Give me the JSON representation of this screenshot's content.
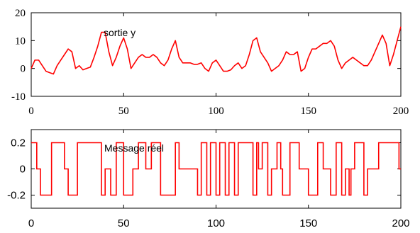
{
  "chart_data": [
    {
      "type": "line",
      "annotation": "sortie y",
      "xlim": [
        0,
        200
      ],
      "ylim": [
        -10,
        20
      ],
      "xticks": [
        0,
        50,
        100,
        150,
        200
      ],
      "yticks": [
        -10,
        0,
        10,
        20
      ],
      "xtick_labels": [
        "0",
        "50",
        "100",
        "150",
        "200"
      ],
      "ytick_labels": [
        "-10",
        "0",
        "10",
        "20"
      ],
      "grid": false,
      "line_color": "#ff0000",
      "series": [
        {
          "x": [
            0,
            2,
            4,
            6,
            8,
            10,
            12,
            14,
            16,
            18,
            20,
            22,
            24,
            26,
            28,
            30,
            32,
            34,
            36,
            38,
            40,
            42,
            44,
            46,
            48,
            50,
            52,
            54,
            56,
            58,
            60,
            62,
            64,
            66,
            68,
            70,
            72,
            74,
            76,
            78,
            80,
            82,
            84,
            86,
            88,
            90,
            92,
            94,
            96,
            98,
            100,
            102,
            104,
            106,
            108,
            110,
            112,
            114,
            116,
            118,
            120,
            122,
            124,
            126,
            128,
            130,
            132,
            134,
            136,
            138,
            140,
            142,
            144,
            146,
            148,
            150,
            152,
            154,
            156,
            158,
            160,
            162,
            164,
            166,
            168,
            170,
            172,
            174,
            176,
            178,
            180,
            182,
            184,
            186,
            188,
            190,
            192,
            194,
            196,
            198,
            200
          ],
          "y": [
            0,
            3,
            3,
            1,
            -1,
            -1.5,
            -2,
            1,
            3,
            5,
            7,
            6,
            0,
            1,
            -0.5,
            0,
            0.5,
            4,
            8,
            13,
            13,
            6,
            1,
            4,
            8,
            11,
            7,
            0,
            2,
            4,
            5,
            4,
            4,
            5,
            4,
            2,
            1,
            3,
            7,
            10,
            4,
            2,
            2,
            2,
            1.5,
            1.5,
            2,
            0,
            -1,
            2,
            3,
            1,
            -1,
            -1,
            -0.5,
            1,
            2,
            0,
            1,
            5,
            10,
            11,
            6,
            4,
            2,
            -1,
            0,
            1,
            3,
            6,
            5,
            5,
            6,
            -1,
            0,
            4,
            7,
            7,
            8,
            9,
            9,
            10,
            8,
            3,
            0,
            2,
            3,
            4,
            3,
            2,
            1,
            1,
            3,
            6,
            9,
            12,
            9,
            1,
            5,
            10,
            15
          ]
        }
      ]
    },
    {
      "type": "line",
      "annotation": "Message réel",
      "xlim": [
        0,
        200
      ],
      "ylim": [
        -0.3,
        0.3
      ],
      "xticks": [
        0,
        50,
        100,
        150,
        200
      ],
      "yticks": [
        -0.2,
        0,
        0.2
      ],
      "xtick_labels": [
        "0",
        "50",
        "100",
        "150",
        "200"
      ],
      "ytick_labels": [
        "-0.2",
        "0",
        "0.2"
      ],
      "grid": false,
      "line_color": "#ff0000",
      "series": [
        {
          "x": [
            0,
            3,
            3,
            5,
            5,
            11,
            11,
            18,
            18,
            20,
            20,
            25,
            25,
            28,
            28,
            38,
            38,
            40,
            40,
            43,
            43,
            46,
            46,
            50,
            50,
            55,
            55,
            58,
            58,
            62,
            62,
            65,
            65,
            70,
            70,
            78,
            78,
            80,
            80,
            90,
            90,
            92,
            92,
            95,
            95,
            97,
            97,
            100,
            100,
            102,
            102,
            105,
            105,
            107,
            107,
            110,
            110,
            112,
            112,
            120,
            120,
            122,
            122,
            123,
            123,
            125,
            125,
            128,
            128,
            130,
            130,
            133,
            133,
            135,
            135,
            136,
            136,
            140,
            140,
            145,
            145,
            150,
            150,
            155,
            155,
            158,
            158,
            162,
            162,
            165,
            165,
            168,
            168,
            170,
            170,
            172,
            172,
            173,
            173,
            175,
            175,
            180,
            180,
            182,
            182,
            188,
            188,
            199,
            199,
            200
          ],
          "y": [
            0.2,
            0.2,
            0,
            0,
            -0.2,
            -0.2,
            0.2,
            0.2,
            0,
            0,
            -0.2,
            -0.2,
            0.2,
            0.2,
            0.2,
            0.2,
            -0.2,
            -0.2,
            0,
            0,
            -0.2,
            -0.2,
            0.2,
            0.2,
            -0.2,
            -0.2,
            0,
            0,
            0.2,
            0.2,
            0,
            0,
            0.2,
            0.2,
            -0.2,
            -0.2,
            0.2,
            0.2,
            0,
            0,
            -0.2,
            -0.2,
            0.2,
            0.2,
            -0.2,
            -0.2,
            0.2,
            0.2,
            -0.2,
            -0.2,
            0.2,
            0.2,
            -0.2,
            -0.2,
            0.2,
            0.2,
            -0.2,
            -0.2,
            0.2,
            0.2,
            -0.2,
            -0.2,
            0.2,
            0.2,
            0,
            0,
            0.2,
            0.2,
            -0.2,
            -0.2,
            0,
            0,
            0.2,
            0.2,
            0,
            0,
            -0.2,
            -0.2,
            0.2,
            0.2,
            0,
            0,
            -0.2,
            -0.2,
            0.2,
            0.2,
            0,
            0,
            -0.2,
            -0.2,
            0.2,
            0.2,
            -0.2,
            -0.2,
            0,
            0,
            -0.2,
            -0.2,
            0,
            0,
            0.2,
            0.2,
            -0.2,
            -0.2,
            0,
            0,
            0.2,
            0.2,
            0,
            0
          ]
        }
      ]
    }
  ]
}
